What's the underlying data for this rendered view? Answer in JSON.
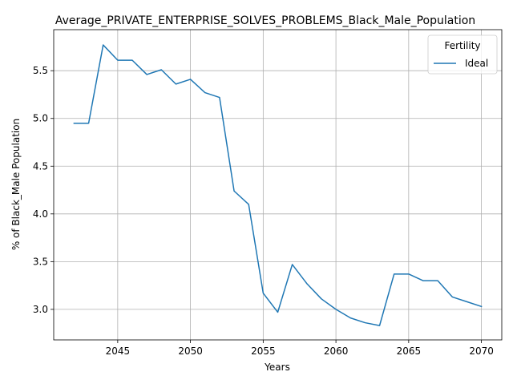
{
  "chart_data": {
    "type": "line",
    "title": "Average_PRIVATE_ENTERPRISE_SOLVES_PROBLEMS_Black_Male_Population",
    "xlabel": "Years",
    "ylabel": "% of Black_Male Population",
    "xlim": [
      2040.6,
      2071.4
    ],
    "ylim": [
      2.68,
      5.93
    ],
    "xticks": [
      2045,
      2050,
      2055,
      2060,
      2065,
      2070
    ],
    "yticks": [
      3.0,
      3.5,
      4.0,
      4.5,
      5.0,
      5.5
    ],
    "grid": true,
    "legend": {
      "title": "Fertility",
      "placement": "top-right"
    },
    "series": [
      {
        "name": "Ideal",
        "color": "#1f77b4",
        "x": [
          2042,
          2043,
          2044,
          2045,
          2046,
          2047,
          2048,
          2049,
          2050,
          2051,
          2052,
          2053,
          2054,
          2055,
          2056,
          2057,
          2058,
          2059,
          2060,
          2061,
          2062,
          2063,
          2064,
          2065,
          2066,
          2067,
          2068,
          2069,
          2070
        ],
        "y": [
          4.95,
          4.95,
          5.77,
          5.61,
          5.61,
          5.46,
          5.51,
          5.36,
          5.41,
          5.27,
          5.22,
          4.24,
          4.1,
          3.17,
          2.97,
          3.47,
          3.27,
          3.11,
          3.0,
          2.91,
          2.86,
          2.83,
          3.37,
          3.37,
          3.3,
          3.3,
          3.13,
          3.08,
          3.03
        ]
      }
    ]
  }
}
